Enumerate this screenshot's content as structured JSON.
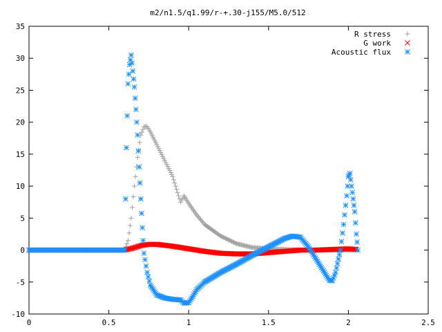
{
  "chart_data": {
    "type": "scatter",
    "title": "m2/n1.5/q1.99/r-+.30-j155/M5.0/512",
    "xlabel": "",
    "ylabel": "",
    "xlim": [
      0,
      2.5
    ],
    "ylim": [
      -10,
      35
    ],
    "x_ticks": [
      0,
      0.5,
      1,
      1.5,
      2,
      2.5
    ],
    "x_tick_labels": [
      "0",
      "0.5",
      "1",
      "1.5",
      "2",
      "2.5"
    ],
    "y_ticks": [
      -10,
      -5,
      0,
      5,
      10,
      15,
      20,
      25,
      30,
      35
    ],
    "y_tick_labels": [
      "-10",
      "-5",
      "0",
      "5",
      "10",
      "15",
      "20",
      "25",
      "30",
      "35"
    ],
    "grid": false,
    "legend_position": "top-right",
    "series": [
      {
        "name": "R stress",
        "marker": "plus",
        "color": "#a0a0a0",
        "points": [
          [
            0.0,
            0
          ],
          [
            0.1,
            0
          ],
          [
            0.2,
            0
          ],
          [
            0.3,
            0
          ],
          [
            0.4,
            0
          ],
          [
            0.5,
            0
          ],
          [
            0.6,
            0
          ],
          [
            0.62,
            1.5
          ],
          [
            0.64,
            5
          ],
          [
            0.66,
            10
          ],
          [
            0.68,
            14.5
          ],
          [
            0.7,
            18
          ],
          [
            0.72,
            19.3
          ],
          [
            0.74,
            19.3
          ],
          [
            0.76,
            18.5
          ],
          [
            0.8,
            16.5
          ],
          [
            0.85,
            14
          ],
          [
            0.9,
            11.5
          ],
          [
            0.93,
            9
          ],
          [
            0.95,
            7.5
          ],
          [
            0.97,
            8.5
          ],
          [
            1.0,
            7.3
          ],
          [
            1.05,
            5.5
          ],
          [
            1.1,
            4
          ],
          [
            1.2,
            2.2
          ],
          [
            1.3,
            1
          ],
          [
            1.4,
            0.4
          ],
          [
            1.5,
            0.2
          ],
          [
            1.6,
            0.1
          ],
          [
            1.7,
            0
          ],
          [
            1.8,
            0
          ],
          [
            1.9,
            0
          ],
          [
            2.0,
            0
          ],
          [
            2.05,
            0
          ]
        ]
      },
      {
        "name": "G work",
        "marker": "cross",
        "color": "#ff0000",
        "points": [
          [
            0.0,
            0
          ],
          [
            0.1,
            0
          ],
          [
            0.2,
            0
          ],
          [
            0.3,
            0
          ],
          [
            0.4,
            0
          ],
          [
            0.5,
            0
          ],
          [
            0.6,
            0
          ],
          [
            0.65,
            0.3
          ],
          [
            0.7,
            0.7
          ],
          [
            0.75,
            0.9
          ],
          [
            0.8,
            0.9
          ],
          [
            0.9,
            0.6
          ],
          [
            1.0,
            0.2
          ],
          [
            1.1,
            -0.2
          ],
          [
            1.2,
            -0.5
          ],
          [
            1.3,
            -0.6
          ],
          [
            1.4,
            -0.6
          ],
          [
            1.5,
            -0.4
          ],
          [
            1.6,
            -0.2
          ],
          [
            1.7,
            0
          ],
          [
            1.8,
            0
          ],
          [
            1.9,
            0.1
          ],
          [
            2.0,
            0.2
          ],
          [
            2.05,
            0.1
          ]
        ]
      },
      {
        "name": "Acoustic flux",
        "marker": "star",
        "color": "#1e90ff",
        "points": [
          [
            0.0,
            0
          ],
          [
            0.1,
            0
          ],
          [
            0.2,
            0
          ],
          [
            0.3,
            0
          ],
          [
            0.4,
            0
          ],
          [
            0.5,
            0
          ],
          [
            0.6,
            0
          ],
          [
            0.61,
            16
          ],
          [
            0.62,
            26
          ],
          [
            0.63,
            29
          ],
          [
            0.64,
            30.5
          ],
          [
            0.65,
            28
          ],
          [
            0.66,
            25.5
          ],
          [
            0.67,
            22
          ],
          [
            0.68,
            18
          ],
          [
            0.69,
            13
          ],
          [
            0.7,
            8
          ],
          [
            0.71,
            3.5
          ],
          [
            0.72,
            -0.5
          ],
          [
            0.74,
            -3.5
          ],
          [
            0.76,
            -5.5
          ],
          [
            0.8,
            -7
          ],
          [
            0.85,
            -7.5
          ],
          [
            0.9,
            -7.7
          ],
          [
            0.95,
            -7.8
          ],
          [
            0.97,
            -8.3
          ],
          [
            1.0,
            -8.2
          ],
          [
            1.02,
            -7.5
          ],
          [
            1.05,
            -6.2
          ],
          [
            1.1,
            -5
          ],
          [
            1.2,
            -3.5
          ],
          [
            1.3,
            -2.2
          ],
          [
            1.4,
            -0.8
          ],
          [
            1.5,
            0.5
          ],
          [
            1.6,
            1.8
          ],
          [
            1.65,
            2.2
          ],
          [
            1.7,
            2
          ],
          [
            1.75,
            0.5
          ],
          [
            1.8,
            -1.5
          ],
          [
            1.85,
            -3.5
          ],
          [
            1.88,
            -4.7
          ],
          [
            1.9,
            -4.8
          ],
          [
            1.92,
            -3.5
          ],
          [
            1.95,
            0
          ],
          [
            1.97,
            4
          ],
          [
            1.99,
            8.5
          ],
          [
            2.0,
            11.5
          ],
          [
            2.01,
            12
          ],
          [
            2.02,
            10
          ],
          [
            2.03,
            8
          ],
          [
            2.04,
            6
          ],
          [
            2.05,
            2.5
          ],
          [
            2.06,
            0
          ]
        ]
      }
    ]
  }
}
